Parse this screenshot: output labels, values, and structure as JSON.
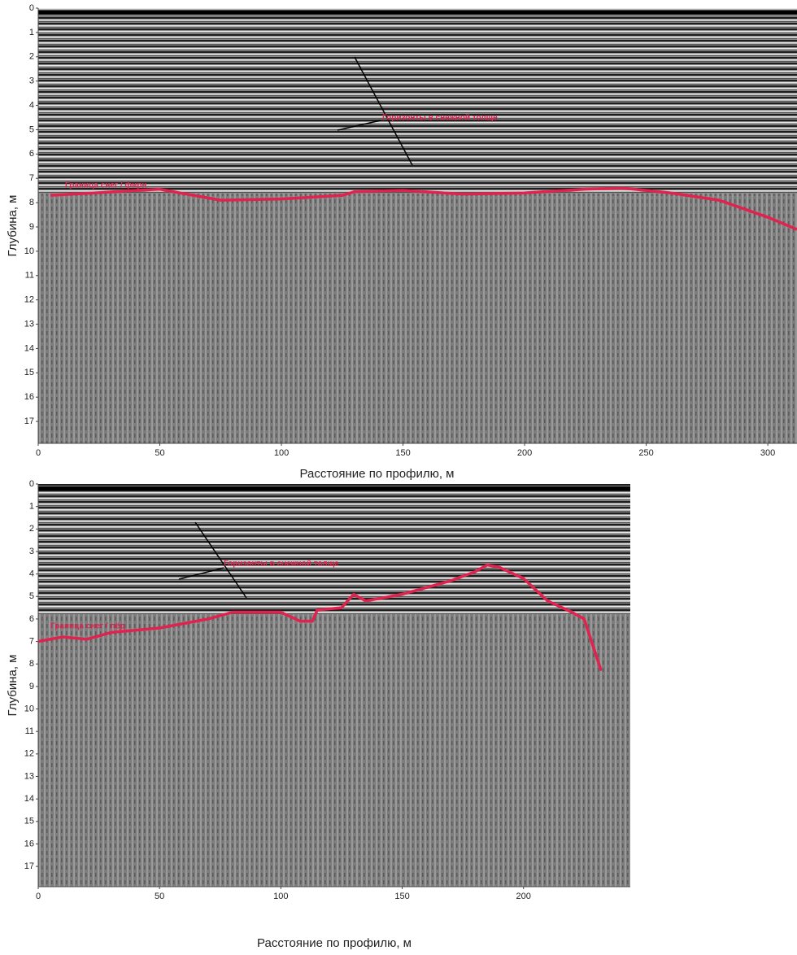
{
  "chart_data": [
    {
      "type": "line",
      "x_label": "Расстояние по профилю, м",
      "y_label": "Глубина, м",
      "annotations": [
        "Горизонты в снежной толще"
      ],
      "xlim": [
        0,
        312
      ],
      "ylim": [
        0,
        17.9
      ],
      "xticks": [
        0,
        50,
        100,
        150,
        200,
        250,
        300
      ],
      "yticks": [
        0,
        1,
        2,
        3,
        4,
        5,
        6,
        7,
        8,
        9,
        10,
        11,
        12,
        13,
        14,
        15,
        16,
        17
      ],
      "y_inverted": true,
      "x": [
        5,
        50,
        75,
        100,
        125,
        130,
        150,
        175,
        200,
        225,
        240,
        260,
        280,
        300,
        312
      ],
      "series": [
        {
          "name": "Граница снег / фирн",
          "color": "#e0234e",
          "values": [
            7.7,
            7.45,
            7.9,
            7.85,
            7.7,
            7.55,
            7.5,
            7.65,
            7.6,
            7.45,
            7.4,
            7.6,
            7.9,
            8.6,
            9.1
          ]
        }
      ]
    },
    {
      "type": "line",
      "x_label": "Расстояние по профилю, м",
      "y_label": "Глубина, м",
      "annotations": [
        "Горизонты в снежной толще"
      ],
      "xlim": [
        0,
        244
      ],
      "ylim": [
        0,
        17.9
      ],
      "xticks": [
        0,
        50,
        100,
        150,
        200
      ],
      "yticks": [
        0,
        1,
        2,
        3,
        4,
        5,
        6,
        7,
        8,
        9,
        10,
        11,
        12,
        13,
        14,
        15,
        16,
        17
      ],
      "y_inverted": true,
      "x": [
        0,
        10,
        20,
        30,
        50,
        70,
        80,
        100,
        108,
        113,
        115,
        125,
        130,
        135,
        150,
        170,
        180,
        185,
        190,
        200,
        210,
        220,
        225,
        232
      ],
      "series": [
        {
          "name": "Граница снег / лёд",
          "color": "#e0234e",
          "values": [
            7.0,
            6.8,
            6.9,
            6.6,
            6.4,
            6.0,
            5.7,
            5.7,
            6.1,
            6.1,
            5.6,
            5.5,
            4.9,
            5.2,
            4.9,
            4.3,
            3.9,
            3.6,
            3.7,
            4.2,
            5.2,
            5.7,
            6.0,
            8.3
          ]
        }
      ]
    }
  ]
}
